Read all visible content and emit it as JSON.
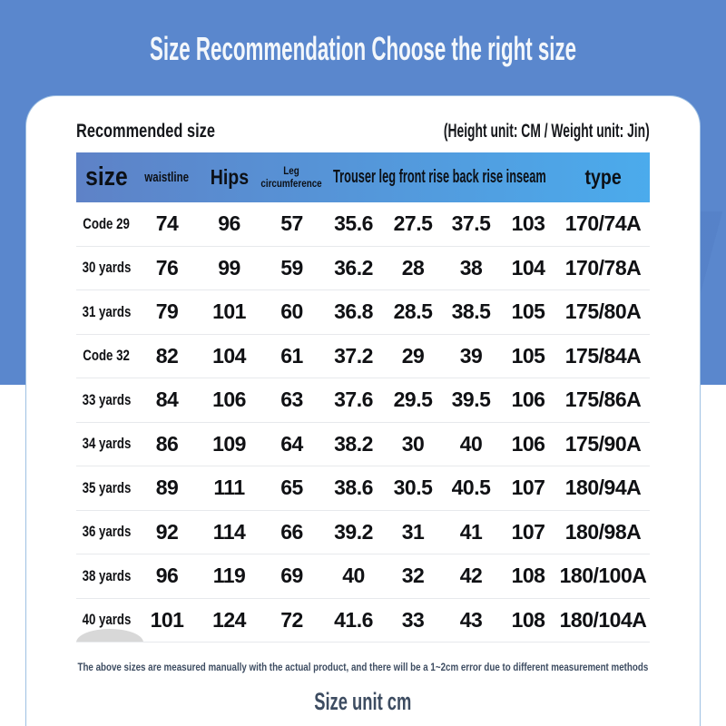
{
  "card": {
    "subtitle_left": "Recommended size",
    "subtitle_right": "(Height unit: CM / Weight unit: Jin)"
  },
  "table": {
    "group_header": "Trouser leg front rise back rise inseam"
  },
  "chart_data": {
    "type": "table",
    "title": "Size Recommendation Choose the right size",
    "columns": [
      "size",
      "waistline",
      "Hips",
      "Leg circumference",
      "Trouser leg",
      "front rise",
      "back rise",
      "inseam",
      "type"
    ],
    "rows": [
      {
        "size": "Code 29",
        "values": [
          "74",
          "96",
          "57",
          "35.6",
          "27.5",
          "37.5",
          "103",
          "170/74A"
        ]
      },
      {
        "size": "30 yards",
        "values": [
          "76",
          "99",
          "59",
          "36.2",
          "28",
          "38",
          "104",
          "170/78A"
        ]
      },
      {
        "size": "31 yards",
        "values": [
          "79",
          "101",
          "60",
          "36.8",
          "28.5",
          "38.5",
          "105",
          "175/80A"
        ]
      },
      {
        "size": "Code 32",
        "values": [
          "82",
          "104",
          "61",
          "37.2",
          "29",
          "39",
          "105",
          "175/84A"
        ]
      },
      {
        "size": "33 yards",
        "values": [
          "84",
          "106",
          "63",
          "37.6",
          "29.5",
          "39.5",
          "106",
          "175/86A"
        ]
      },
      {
        "size": "34 yards",
        "values": [
          "86",
          "109",
          "64",
          "38.2",
          "30",
          "40",
          "106",
          "175/90A"
        ]
      },
      {
        "size": "35 yards",
        "values": [
          "89",
          "111",
          "65",
          "38.6",
          "30.5",
          "40.5",
          "107",
          "180/94A"
        ]
      },
      {
        "size": "36 yards",
        "values": [
          "92",
          "114",
          "66",
          "39.2",
          "31",
          "41",
          "107",
          "180/98A"
        ]
      },
      {
        "size": "38 yards",
        "values": [
          "96",
          "119",
          "69",
          "40",
          "32",
          "42",
          "108",
          "180/100A"
        ]
      },
      {
        "size": "40 yards",
        "values": [
          "101",
          "124",
          "72",
          "41.6",
          "33",
          "43",
          "108",
          "180/104A"
        ]
      }
    ]
  },
  "footer": {
    "note": "The above sizes are measured manually with the actual product, and there will be a 1~2cm error due to different measurement methods",
    "size_unit": "Size unit cm"
  },
  "colors": {
    "banner_bg": "#5a87cd",
    "header_gradient": [
      "#5e82c7",
      "#4babec"
    ],
    "footer_text": "#3d4c61"
  }
}
